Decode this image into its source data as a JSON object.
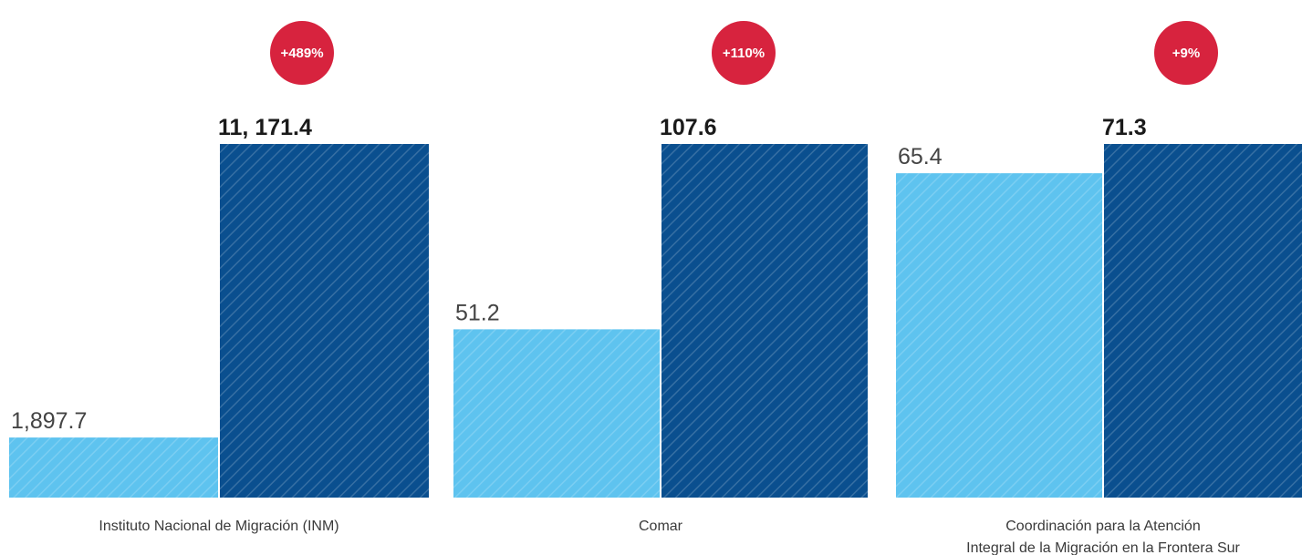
{
  "colors": {
    "previous": "#5ec3ef",
    "current": "#0a4f8f",
    "badge": "#d7233e"
  },
  "chart_data": [
    {
      "type": "bar",
      "categories": [
        "Instituto Nacional de Migración (INM)"
      ],
      "series": [
        {
          "values": [
            1897.7
          ],
          "labels": [
            "1,897.7"
          ]
        },
        {
          "values": [
            11171.4
          ],
          "labels": [
            "11, 171.4"
          ]
        }
      ],
      "change": "+489%",
      "ylim": [
        0,
        11171.4
      ]
    },
    {
      "type": "bar",
      "categories": [
        "Comar"
      ],
      "series": [
        {
          "values": [
            51.2
          ],
          "labels": [
            "51.2"
          ]
        },
        {
          "values": [
            107.6
          ],
          "labels": [
            "107.6"
          ]
        }
      ],
      "change": "+110%",
      "ylim": [
        0,
        107.6
      ]
    },
    {
      "type": "bar",
      "categories": [
        "Coordinación para la Atención Integral de la Migración en la Frontera Sur"
      ],
      "category_lines": [
        "Coordinación para la Atención",
        "Integral de la Migración en la Frontera Sur"
      ],
      "series": [
        {
          "values": [
            65.4
          ],
          "labels": [
            "65.4"
          ]
        },
        {
          "values": [
            71.3
          ],
          "labels": [
            "71.3"
          ]
        }
      ],
      "change": "+9%",
      "ylim": [
        0,
        71.3
      ]
    }
  ]
}
